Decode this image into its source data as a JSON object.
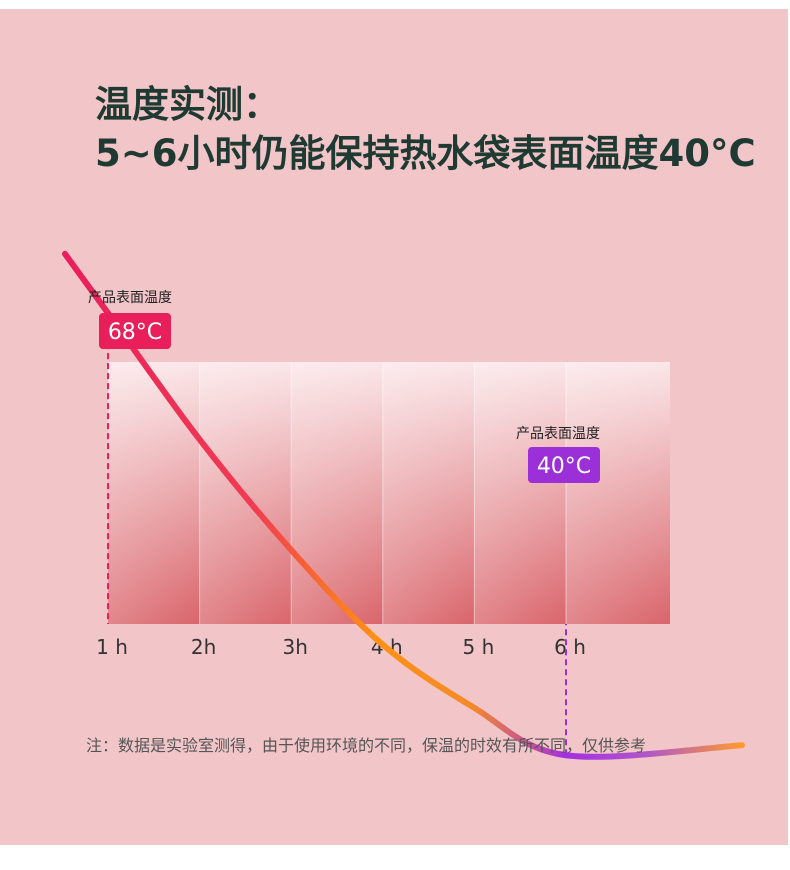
{
  "title": {
    "line1": "温度实测：",
    "line2": "5~6小时仍能保持热水袋表面温度40°C"
  },
  "chart_data": {
    "type": "line",
    "x": [
      "1 h",
      "2h",
      "3h",
      "4 h",
      "5 h",
      "6 h"
    ],
    "series": [
      {
        "values": [
          68,
          60,
          53,
          47,
          43,
          40
        ]
      }
    ],
    "annotations": [
      {
        "x": "1 h",
        "label": "产品表面温度",
        "value_label": "68°C",
        "color": "#e81f5a"
      },
      {
        "x": "6 h",
        "label": "产品表面温度",
        "value_label": "40°C",
        "color": "#9b30d9"
      }
    ],
    "ylim": [
      34,
      72
    ],
    "grid": "vertical",
    "colors": {
      "curve_start": "#e91e5c",
      "curve_mid": "#ff9112",
      "curve_end": "#a330e0"
    }
  },
  "note": "注：数据是实验室测得，由于使用环境的不同，保温的时效有所不同，仅供参考"
}
